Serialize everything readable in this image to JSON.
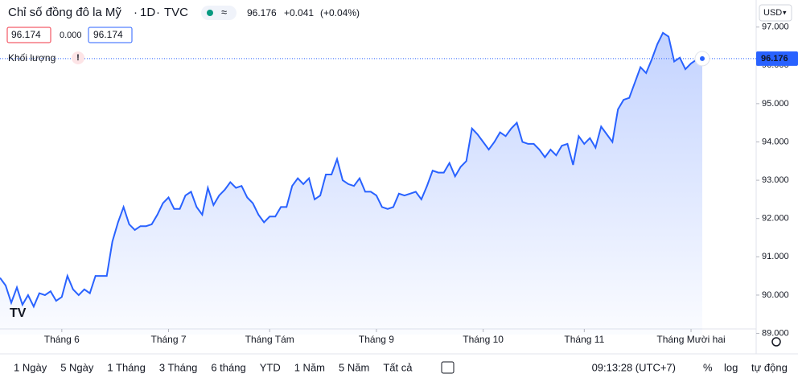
{
  "chart_data": {
    "type": "line",
    "title": "Chỉ số đồng đô la Mỹ",
    "interval": "1D",
    "source": "TVC",
    "last_price": "96.176",
    "change": "+0.041",
    "change_pct": "(+0.04%)",
    "ohlc_boxes": [
      "96.174",
      "0.000",
      "96.174"
    ],
    "volume_label": "Khối lượng",
    "currency": "USD",
    "color": "#2962ff",
    "grid": false,
    "values": [
      90.45,
      90.25,
      89.8,
      90.2,
      89.75,
      90.0,
      89.7,
      90.05,
      90.0,
      90.1,
      89.85,
      89.95,
      90.5,
      90.15,
      90.0,
      90.15,
      90.05,
      90.5,
      90.5,
      90.5,
      91.4,
      91.9,
      92.3,
      91.85,
      91.7,
      91.8,
      91.8,
      91.85,
      92.1,
      92.4,
      92.55,
      92.25,
      92.25,
      92.6,
      92.7,
      92.3,
      92.1,
      92.8,
      92.35,
      92.6,
      92.75,
      92.95,
      92.8,
      92.85,
      92.55,
      92.4,
      92.1,
      91.9,
      92.05,
      92.05,
      92.3,
      92.3,
      92.85,
      93.05,
      92.9,
      93.05,
      92.5,
      92.6,
      93.15,
      93.15,
      93.55,
      93.0,
      92.9,
      92.85,
      93.05,
      92.7,
      92.7,
      92.6,
      92.3,
      92.25,
      92.3,
      92.65,
      92.6,
      92.65,
      92.7,
      92.5,
      92.85,
      93.25,
      93.2,
      93.2,
      93.45,
      93.1,
      93.35,
      93.5,
      94.35,
      94.2,
      94.0,
      93.8,
      94.0,
      94.25,
      94.15,
      94.35,
      94.5,
      94.0,
      93.95,
      93.95,
      93.8,
      93.6,
      93.8,
      93.65,
      93.9,
      93.95,
      93.4,
      94.15,
      93.95,
      94.1,
      93.85,
      94.4,
      94.2,
      94.0,
      94.85,
      95.1,
      95.15,
      95.55,
      95.95,
      95.8,
      96.15,
      96.55,
      96.85,
      96.75,
      96.1,
      96.2,
      95.9,
      96.05,
      96.15,
      96.176
    ],
    "ylim": [
      88.97,
      97.16
    ],
    "yticks": [
      {
        "value": 89,
        "label": "89.000"
      },
      {
        "value": 90,
        "label": "90.000"
      },
      {
        "value": 91,
        "label": "91.000"
      },
      {
        "value": 92,
        "label": "92.000"
      },
      {
        "value": 93,
        "label": "93.000"
      },
      {
        "value": 94,
        "label": "94.000"
      },
      {
        "value": 95,
        "label": "95.000"
      },
      {
        "value": 96,
        "label": "96.000"
      },
      {
        "value": 97,
        "label": "97.000"
      }
    ],
    "xticks": [
      {
        "value": 11,
        "label": "Tháng 6"
      },
      {
        "value": 30,
        "label": "Tháng 7"
      },
      {
        "value": 48,
        "label": "Tháng Tám"
      },
      {
        "value": 67,
        "label": "Tháng 9"
      },
      {
        "value": 86,
        "label": "Tháng 10"
      },
      {
        "value": 104,
        "label": "Tháng 11"
      },
      {
        "value": 123,
        "label": "Tháng Mười hai"
      }
    ],
    "ranges": [
      "1 Ngày",
      "5 Ngày",
      "1 Tháng",
      "3 Tháng",
      "6 tháng",
      "YTD",
      "1 Năm",
      "5 Năm",
      "Tất cả"
    ],
    "clock": "09:13:28 (UTC+7)",
    "scale_options": [
      "%",
      "log",
      "tự động"
    ]
  }
}
